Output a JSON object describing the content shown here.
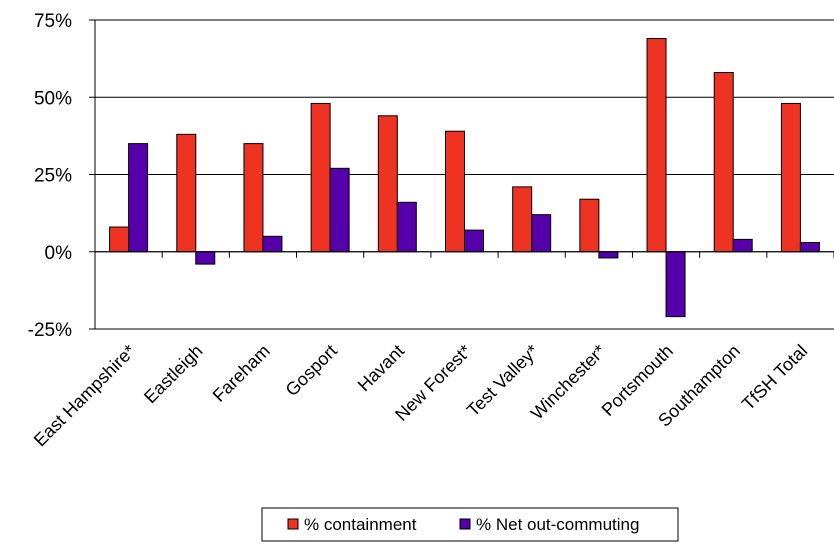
{
  "chart_data": {
    "type": "bar",
    "categories": [
      "East Hampshire*",
      "Eastleigh",
      "Fareham",
      "Gosport",
      "Havant",
      "New Forest*",
      "Test Valley*",
      "Winchester*",
      "Portsmouth",
      "Southampton",
      "TfSH Total"
    ],
    "series": [
      {
        "name": "% containment",
        "values": [
          8,
          38,
          35,
          48,
          44,
          39,
          21,
          17,
          69,
          58,
          48
        ],
        "color": "#ee3322"
      },
      {
        "name": "% Net out-commuting",
        "values": [
          35,
          -4,
          5,
          27,
          16,
          7,
          12,
          -2,
          -21,
          4,
          3
        ],
        "color": "#5500aa"
      }
    ],
    "ylim": [
      -25,
      75
    ],
    "yticks": [
      -25,
      0,
      25,
      50,
      75
    ],
    "ytick_labels": [
      "-25%",
      "0%",
      "25%",
      "50%",
      "75%"
    ],
    "xlabel": "",
    "ylabel": "",
    "title": "",
    "gridlines": true,
    "legend_position": "bottom"
  }
}
